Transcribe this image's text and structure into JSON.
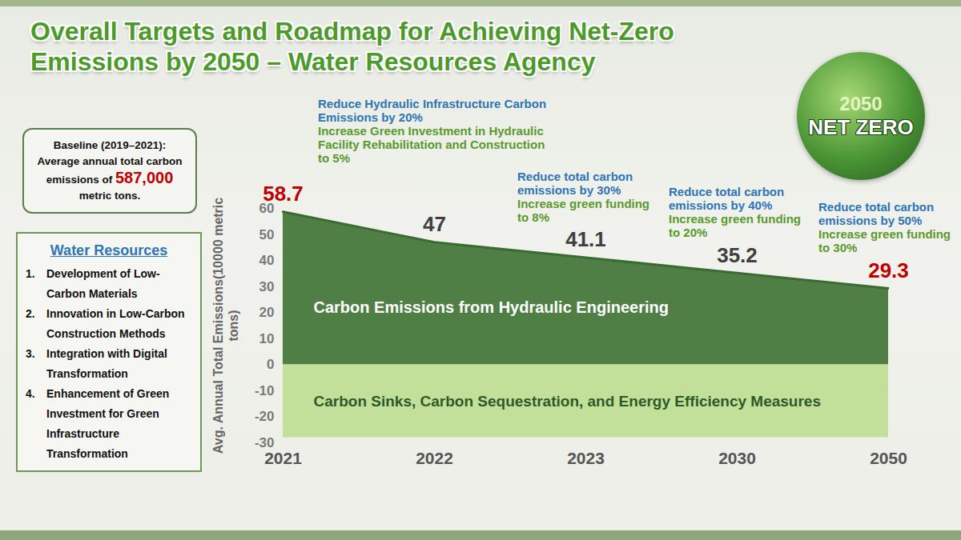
{
  "title": "Overall Targets and Roadmap for Achieving Net-Zero Emissions by 2050 – Water Resources Agency",
  "badge": {
    "year": "2050",
    "text": "NET ZERO"
  },
  "baseline": {
    "label": "Baseline (2019–2021):",
    "text": "Average annual total carbon emissions of",
    "amount": "587,000",
    "unit": "metric tons."
  },
  "panel": {
    "title": "Water Resources",
    "items": [
      {
        "number": "1.",
        "text": "Development of Low-Carbon Materials"
      },
      {
        "number": "2.",
        "text": "Innovation in Low-Carbon Construction Methods"
      },
      {
        "number": "3.",
        "text": "Integration with Digital Transformation"
      },
      {
        "number": "4.",
        "text": "Enhancement of Green Investment for Green Infrastructure Transformation"
      }
    ]
  },
  "chart_data": {
    "type": "area",
    "categories": [
      "2021",
      "2022",
      "2023",
      "2030",
      "2050"
    ],
    "series": [
      {
        "name": "Carbon Emissions from Hydraulic Engineering",
        "color": "#4f7f45",
        "values": [
          58.7,
          47,
          41.1,
          35.2,
          29.3
        ]
      }
    ],
    "sinks": {
      "name": "Carbon Sinks, Carbon Sequestration, and Energy Efficiency Measures",
      "color": "#c3e09a",
      "range": [
        -28,
        0
      ]
    },
    "ylabel": "Avg. Annual Total Emissions(10000 metric tons)",
    "ylim": [
      -30,
      60
    ],
    "yticks": [
      -30,
      -20,
      -10,
      0,
      10,
      20,
      30,
      40,
      50,
      60
    ],
    "grid": false,
    "data_labels": true,
    "annotations": [
      {
        "x": "2022",
        "target": "Reduce Hydraulic Infrastructure Carbon Emissions by 20%",
        "funding": "Increase Green Investment in Hydraulic Facility Rehabilitation and Construction to 5%"
      },
      {
        "x": "2023",
        "target": "Reduce total carbon emissions by 30%",
        "funding": "Increase green funding to 8%"
      },
      {
        "x": "2030",
        "target": "Reduce total carbon emissions by 40%",
        "funding": "Increase green funding to 20%"
      },
      {
        "x": "2050",
        "target": "Reduce total carbon emissions by 50%",
        "funding": "Increase green funding to 30%"
      }
    ]
  }
}
